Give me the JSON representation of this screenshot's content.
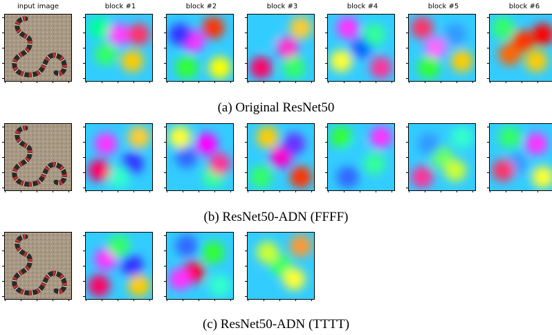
{
  "column_headers": [
    "input image",
    "block #1",
    "block #2",
    "block #3",
    "block #4",
    "block #5",
    "block #6"
  ],
  "rows": [
    {
      "caption": "(a) Original ResNet50",
      "heatmaps": [
        {
          "blobs": [
            [
              0.5,
              0.3,
              "#ff40ff"
            ],
            [
              0.3,
              0.6,
              "#33ff66"
            ],
            [
              0.7,
              0.7,
              "#ffcc00"
            ],
            [
              0.2,
              0.2,
              "#00ff99"
            ],
            [
              0.8,
              0.3,
              "#ff3366"
            ]
          ]
        },
        {
          "blobs": [
            [
              0.4,
              0.4,
              "#ff33ff"
            ],
            [
              0.7,
              0.2,
              "#ff3300"
            ],
            [
              0.3,
              0.8,
              "#33ff33"
            ],
            [
              0.8,
              0.8,
              "#ffff00"
            ],
            [
              0.2,
              0.3,
              "#3333ff"
            ]
          ]
        },
        {
          "blobs": [
            [
              0.6,
              0.5,
              "#ff33cc"
            ],
            [
              0.3,
              0.3,
              "#33ccff"
            ],
            [
              0.7,
              0.8,
              "#33ff66"
            ],
            [
              0.2,
              0.8,
              "#ff0066"
            ],
            [
              0.8,
              0.2,
              "#ffcc33"
            ]
          ]
        },
        {
          "blobs": [
            [
              0.5,
              0.5,
              "#0066ff"
            ],
            [
              0.3,
              0.2,
              "#ff33ff"
            ],
            [
              0.7,
              0.3,
              "#33ff99"
            ],
            [
              0.2,
              0.7,
              "#ffff33"
            ],
            [
              0.8,
              0.8,
              "#ff3399"
            ]
          ]
        },
        {
          "blobs": [
            [
              0.4,
              0.5,
              "#ff66ff"
            ],
            [
              0.7,
              0.3,
              "#3399ff"
            ],
            [
              0.3,
              0.8,
              "#33ff33"
            ],
            [
              0.8,
              0.7,
              "#ffcc00"
            ],
            [
              0.2,
              0.2,
              "#ff3366"
            ]
          ]
        },
        {
          "blobs": [
            [
              0.5,
              0.4,
              "#ff3300"
            ],
            [
              0.3,
              0.6,
              "#ff6600"
            ],
            [
              0.7,
              0.7,
              "#ffcc00"
            ],
            [
              0.2,
              0.2,
              "#33ff66"
            ],
            [
              0.8,
              0.3,
              "#ff0000"
            ]
          ]
        }
      ]
    },
    {
      "caption": "(b) ResNet50-ADN (FFFF)",
      "heatmaps": [
        {
          "blobs": [
            [
              0.3,
              0.3,
              "#ff33ff"
            ],
            [
              0.7,
              0.6,
              "#3333ff"
            ],
            [
              0.5,
              0.8,
              "#33ffcc"
            ],
            [
              0.8,
              0.2,
              "#ffcc33"
            ],
            [
              0.2,
              0.7,
              "#ff0066"
            ]
          ]
        },
        {
          "blobs": [
            [
              0.6,
              0.3,
              "#ff00ff"
            ],
            [
              0.3,
              0.5,
              "#3366ff"
            ],
            [
              0.7,
              0.8,
              "#33ff99"
            ],
            [
              0.2,
              0.2,
              "#ffff33"
            ],
            [
              0.8,
              0.6,
              "#ff3399"
            ]
          ]
        },
        {
          "blobs": [
            [
              0.5,
              0.5,
              "#ff00cc"
            ],
            [
              0.3,
              0.2,
              "#ffcc00"
            ],
            [
              0.7,
              0.3,
              "#6633ff"
            ],
            [
              0.2,
              0.8,
              "#33ff66"
            ],
            [
              0.8,
              0.8,
              "#ff3300"
            ]
          ]
        },
        {
          "blobs": [
            [
              0.4,
              0.4,
              "#33ccff"
            ],
            [
              0.7,
              0.6,
              "#33ff99"
            ],
            [
              0.3,
              0.8,
              "#3366ff"
            ],
            [
              0.8,
              0.2,
              "#ff33ff"
            ],
            [
              0.2,
              0.2,
              "#33ff33"
            ]
          ]
        },
        {
          "blobs": [
            [
              0.5,
              0.5,
              "#66ff66"
            ],
            [
              0.3,
              0.3,
              "#3399ff"
            ],
            [
              0.7,
              0.7,
              "#ccff33"
            ],
            [
              0.2,
              0.8,
              "#ff3399"
            ],
            [
              0.8,
              0.2,
              "#33ffcc"
            ]
          ]
        },
        {
          "blobs": [
            [
              0.4,
              0.6,
              "#3399ff"
            ],
            [
              0.7,
              0.3,
              "#ff33ff"
            ],
            [
              0.3,
              0.2,
              "#33ff66"
            ],
            [
              0.8,
              0.8,
              "#ffff33"
            ],
            [
              0.2,
              0.7,
              "#ff3366"
            ]
          ]
        }
      ]
    },
    {
      "caption": "(c) ResNet50-ADN (TTTT)",
      "heatmaps": [
        {
          "blobs": [
            [
              0.3,
              0.4,
              "#ff33ff"
            ],
            [
              0.7,
              0.5,
              "#3333ff"
            ],
            [
              0.5,
              0.2,
              "#33ff66"
            ],
            [
              0.8,
              0.8,
              "#ffcc00"
            ],
            [
              0.2,
              0.8,
              "#ff0066"
            ]
          ]
        },
        {
          "blobs": [
            [
              0.4,
              0.6,
              "#ff0033"
            ],
            [
              0.7,
              0.3,
              "#33ff33"
            ],
            [
              0.3,
              0.2,
              "#3366ff"
            ],
            [
              0.8,
              0.8,
              "#33ffcc"
            ],
            [
              0.2,
              0.7,
              "#ff33ff"
            ]
          ]
        },
        {
          "blobs": [
            [
              0.5,
              0.5,
              "#33ff66"
            ],
            [
              0.3,
              0.3,
              "#ccff33"
            ],
            [
              0.7,
              0.7,
              "#ffff33"
            ],
            [
              0.2,
              0.8,
              "#33ccff"
            ],
            [
              0.8,
              0.2,
              "#ff9933"
            ]
          ]
        }
      ]
    }
  ],
  "colors": {
    "heatmap_base": "#33ccff",
    "snake_body": "#2a2a2a",
    "snake_band": "#c8322a",
    "ground": "#a89985"
  }
}
